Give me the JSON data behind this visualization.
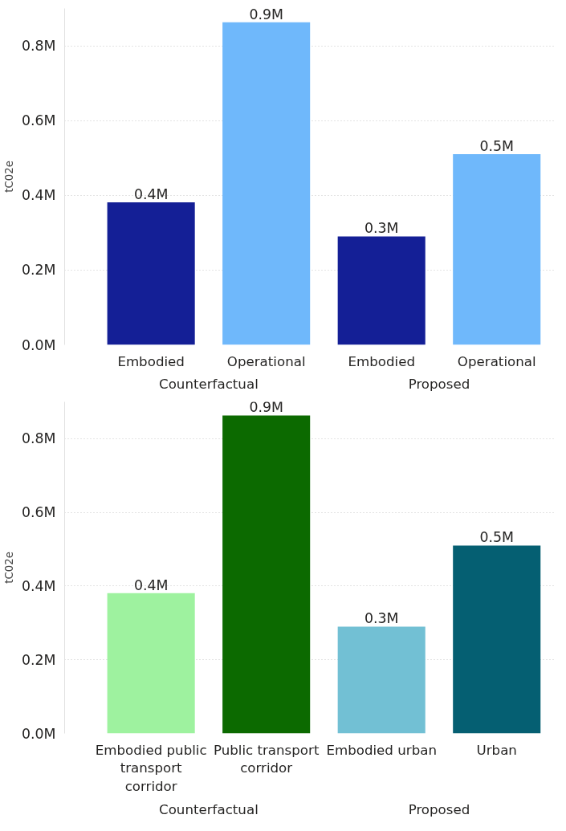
{
  "chart_data": [
    {
      "type": "bar",
      "ylabel": "tC02e",
      "categories": [
        "Embodied",
        "Operational",
        "Embodied",
        "Operational"
      ],
      "values": [
        381000,
        863000,
        290000,
        510000
      ],
      "colors": [
        "#141f96",
        "#6fb8fb",
        "#141f96",
        "#6fb8fb"
      ],
      "value_labels": [
        "0.4M",
        "0.9M",
        "0.3M",
        "0.5M"
      ],
      "annotations": [
        "Counterfactual",
        "Proposed"
      ],
      "ylim": [
        0,
        900000
      ],
      "yticks": [
        {
          "value": 0,
          "label": "0.0M"
        },
        {
          "value": 200000,
          "label": "0.2M"
        },
        {
          "value": 400000,
          "label": "0.4M"
        },
        {
          "value": 600000,
          "label": "0.6M"
        },
        {
          "value": 800000,
          "label": "0.8M"
        }
      ],
      "grid": "y"
    },
    {
      "type": "bar",
      "ylabel": "tC02e",
      "categories": [
        "Embodied public transport corridor",
        "Public transport corridor",
        "Embodied urban",
        "Urban"
      ],
      "values": [
        381000,
        863000,
        290000,
        510000
      ],
      "colors": [
        "#9ef29f",
        "#0c6a00",
        "#72c0d4",
        "#055f72"
      ],
      "value_labels": [
        "0.4M",
        "0.9M",
        "0.3M",
        "0.5M"
      ],
      "annotations": [
        "Counterfactual",
        "Proposed"
      ],
      "ylim": [
        0,
        900000
      ],
      "yticks": [
        {
          "value": 0,
          "label": "0.0M"
        },
        {
          "value": 200000,
          "label": "0.2M"
        },
        {
          "value": 400000,
          "label": "0.4M"
        },
        {
          "value": 600000,
          "label": "0.6M"
        },
        {
          "value": 800000,
          "label": "0.8M"
        }
      ],
      "grid": "y"
    }
  ]
}
